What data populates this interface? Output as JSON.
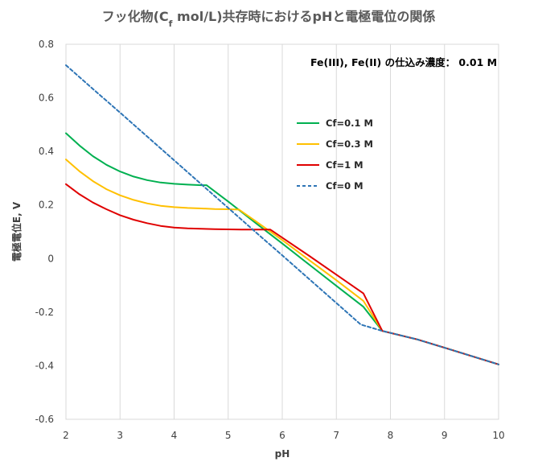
{
  "chart_data": {
    "type": "line",
    "title": {
      "prefix": "フッ化物(C",
      "subscript": "f",
      "suffix": " mol/L)共存時におけるpHと電極電位の関係"
    },
    "xlabel": "pH",
    "ylabel": "電極電位E, V",
    "xlim": [
      2,
      10
    ],
    "ylim": [
      -0.6,
      0.8
    ],
    "x_ticks": [
      2,
      3,
      4,
      5,
      6,
      7,
      8,
      9,
      10
    ],
    "x_tick_labels": [
      "2",
      "3",
      "4",
      "5",
      "6",
      "7",
      "8",
      "9",
      "10"
    ],
    "y_ticks": [
      -0.6,
      -0.4,
      -0.2,
      0,
      0.2,
      0.4,
      0.6,
      0.8
    ],
    "y_tick_labels": [
      "-0.6",
      "-0.4",
      "-0.2",
      "0",
      "0.2",
      "0.4",
      "0.6",
      "0.8"
    ],
    "grid": "vertical",
    "legend_position": "upper-right-inside",
    "annotation": "Fe(III), Fe(II) の仕込み濃度： 0.01 M",
    "series": [
      {
        "name": "Cf=0.1 M",
        "color": "#00B050",
        "style": "solid",
        "x": [
          2,
          2.25,
          2.5,
          2.75,
          3,
          3.25,
          3.5,
          3.75,
          4,
          4.25,
          4.5,
          4.6,
          5.0,
          5.5,
          6.0,
          6.5,
          7.0,
          7.5,
          7.85,
          8.5,
          9,
          9.5,
          10
        ],
        "y": [
          0.468,
          0.422,
          0.382,
          0.35,
          0.325,
          0.306,
          0.293,
          0.284,
          0.279,
          0.276,
          0.274,
          0.274,
          0.213,
          0.134,
          0.056,
          -0.023,
          -0.102,
          -0.18,
          -0.27,
          -0.302,
          -0.333,
          -0.364,
          -0.395
        ]
      },
      {
        "name": "Cf=0.3 M",
        "color": "#FFC000",
        "style": "solid",
        "x": [
          2,
          2.25,
          2.5,
          2.75,
          3,
          3.25,
          3.5,
          3.75,
          4,
          4.25,
          4.5,
          4.75,
          5,
          5.2,
          5.5,
          6.0,
          6.5,
          7.0,
          7.5,
          7.85,
          8.5,
          9,
          9.5,
          10
        ],
        "y": [
          0.37,
          0.326,
          0.289,
          0.259,
          0.236,
          0.219,
          0.206,
          0.197,
          0.192,
          0.189,
          0.187,
          0.185,
          0.184,
          0.183,
          0.141,
          0.069,
          -0.006,
          -0.081,
          -0.158,
          -0.27,
          -0.302,
          -0.333,
          -0.364,
          -0.395
        ]
      },
      {
        "name": "Cf=1 M",
        "color": "#E00000",
        "style": "solid",
        "x": [
          2,
          2.25,
          2.5,
          2.75,
          3,
          3.25,
          3.5,
          3.75,
          4,
          4.25,
          4.5,
          4.75,
          5,
          5.25,
          5.5,
          5.78,
          6.0,
          6.5,
          7.0,
          7.5,
          7.85,
          8.5,
          9,
          9.5,
          10
        ],
        "y": [
          0.278,
          0.24,
          0.209,
          0.184,
          0.162,
          0.145,
          0.132,
          0.122,
          0.116,
          0.113,
          0.111,
          0.11,
          0.109,
          0.108,
          0.108,
          0.108,
          0.078,
          0.01,
          -0.06,
          -0.13,
          -0.27,
          -0.302,
          -0.333,
          -0.364,
          -0.395
        ]
      },
      {
        "name": "Cf=0 M",
        "color": "#2E75B6",
        "style": "dashed",
        "x": [
          2,
          2.5,
          3,
          3.5,
          4,
          4.5,
          5,
          5.5,
          6,
          6.5,
          7,
          7.45,
          7.85,
          8.5,
          9,
          9.5,
          10
        ],
        "y": [
          0.722,
          0.633,
          0.545,
          0.456,
          0.367,
          0.278,
          0.189,
          0.1,
          0.012,
          -0.077,
          -0.166,
          -0.246,
          -0.27,
          -0.302,
          -0.333,
          -0.364,
          -0.395
        ]
      }
    ]
  }
}
